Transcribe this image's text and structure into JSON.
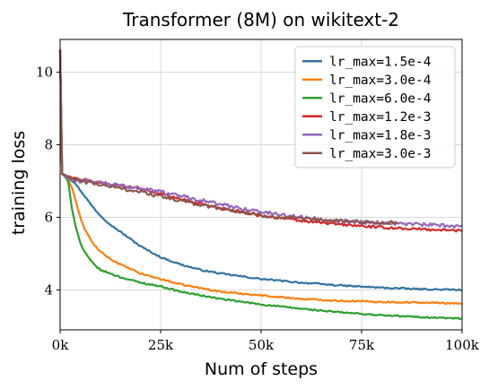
{
  "chart_data": {
    "type": "line",
    "title": "Transformer (8M) on wikitext-2",
    "xlabel": "Num of steps",
    "ylabel": "training loss",
    "xlim": [
      0,
      100000
    ],
    "ylim": [
      2.9,
      10.9
    ],
    "xticks": [
      0,
      25000,
      50000,
      75000,
      100000
    ],
    "xtick_labels": [
      "0k",
      "25k",
      "50k",
      "75k",
      "100k"
    ],
    "yticks": [
      4,
      6,
      8,
      10
    ],
    "ytick_labels": [
      "4",
      "6",
      "8",
      "10"
    ],
    "grid": true,
    "legend_position": "top-right",
    "series": [
      {
        "name": "lr_max=1.5e-4",
        "color": "#3274a1",
        "end_x": 100000,
        "noise": 0.02,
        "points": [
          [
            0,
            10.6
          ],
          [
            500,
            7.2
          ],
          [
            2000,
            7.1
          ],
          [
            4000,
            6.9
          ],
          [
            6000,
            6.6
          ],
          [
            8000,
            6.3
          ],
          [
            10000,
            6.05
          ],
          [
            12500,
            5.8
          ],
          [
            15000,
            5.6
          ],
          [
            20000,
            5.2
          ],
          [
            25000,
            4.9
          ],
          [
            30000,
            4.7
          ],
          [
            35000,
            4.55
          ],
          [
            40000,
            4.45
          ],
          [
            50000,
            4.3
          ],
          [
            60000,
            4.2
          ],
          [
            70000,
            4.12
          ],
          [
            80000,
            4.06
          ],
          [
            90000,
            4.02
          ],
          [
            100000,
            4.0
          ]
        ]
      },
      {
        "name": "lr_max=3.0e-4",
        "color": "#ff7f0e",
        "end_x": 100000,
        "noise": 0.02,
        "points": [
          [
            0,
            10.6
          ],
          [
            500,
            7.2
          ],
          [
            2000,
            7.05
          ],
          [
            3000,
            6.8
          ],
          [
            4000,
            6.4
          ],
          [
            5000,
            6.0
          ],
          [
            6000,
            5.7
          ],
          [
            8000,
            5.3
          ],
          [
            10000,
            5.05
          ],
          [
            12500,
            4.85
          ],
          [
            15000,
            4.7
          ],
          [
            20000,
            4.45
          ],
          [
            25000,
            4.3
          ],
          [
            30000,
            4.15
          ],
          [
            35000,
            4.05
          ],
          [
            40000,
            3.95
          ],
          [
            50000,
            3.85
          ],
          [
            60000,
            3.75
          ],
          [
            70000,
            3.7
          ],
          [
            80000,
            3.67
          ],
          [
            90000,
            3.65
          ],
          [
            100000,
            3.63
          ]
        ]
      },
      {
        "name": "lr_max=6.0e-4",
        "color": "#2ca02c",
        "end_x": 100000,
        "noise": 0.02,
        "points": [
          [
            0,
            10.6
          ],
          [
            500,
            7.2
          ],
          [
            2000,
            7.0
          ],
          [
            2500,
            6.6
          ],
          [
            3000,
            6.2
          ],
          [
            4000,
            5.7
          ],
          [
            5000,
            5.3
          ],
          [
            6000,
            5.05
          ],
          [
            8000,
            4.75
          ],
          [
            10000,
            4.55
          ],
          [
            12500,
            4.45
          ],
          [
            15000,
            4.35
          ],
          [
            20000,
            4.2
          ],
          [
            25000,
            4.1
          ],
          [
            30000,
            3.95
          ],
          [
            35000,
            3.85
          ],
          [
            40000,
            3.75
          ],
          [
            50000,
            3.6
          ],
          [
            60000,
            3.48
          ],
          [
            70000,
            3.38
          ],
          [
            80000,
            3.3
          ],
          [
            90000,
            3.25
          ],
          [
            100000,
            3.21
          ]
        ]
      },
      {
        "name": "lr_max=1.2e-3",
        "color": "#d62728",
        "end_x": 100000,
        "noise": 0.035,
        "points": [
          [
            0,
            10.6
          ],
          [
            500,
            7.2
          ],
          [
            2000,
            7.1
          ],
          [
            5000,
            7.05
          ],
          [
            10000,
            6.95
          ],
          [
            20000,
            6.8
          ],
          [
            30000,
            6.5
          ],
          [
            40000,
            6.25
          ],
          [
            50000,
            6.05
          ],
          [
            60000,
            5.9
          ],
          [
            70000,
            5.8
          ],
          [
            80000,
            5.72
          ],
          [
            90000,
            5.67
          ],
          [
            100000,
            5.63
          ]
        ]
      },
      {
        "name": "lr_max=1.8e-3",
        "color": "#9467bd",
        "end_x": 100000,
        "noise": 0.05,
        "points": [
          [
            0,
            10.6
          ],
          [
            500,
            7.2
          ],
          [
            2000,
            7.1
          ],
          [
            5000,
            7.0
          ],
          [
            10000,
            6.95
          ],
          [
            20000,
            6.8
          ],
          [
            30000,
            6.6
          ],
          [
            40000,
            6.35
          ],
          [
            50000,
            6.15
          ],
          [
            60000,
            6.0
          ],
          [
            70000,
            5.9
          ],
          [
            80000,
            5.85
          ],
          [
            90000,
            5.8
          ],
          [
            100000,
            5.75
          ]
        ]
      },
      {
        "name": "lr_max=3.0e-3",
        "color": "#8c564b",
        "end_x": 84000,
        "noise": 0.05,
        "points": [
          [
            0,
            10.6
          ],
          [
            500,
            7.2
          ],
          [
            2000,
            7.1
          ],
          [
            5000,
            7.0
          ],
          [
            10000,
            6.9
          ],
          [
            20000,
            6.7
          ],
          [
            30000,
            6.45
          ],
          [
            40000,
            6.25
          ],
          [
            50000,
            6.05
          ],
          [
            60000,
            5.95
          ],
          [
            70000,
            5.9
          ],
          [
            80000,
            5.85
          ],
          [
            84000,
            5.85
          ]
        ]
      }
    ]
  }
}
